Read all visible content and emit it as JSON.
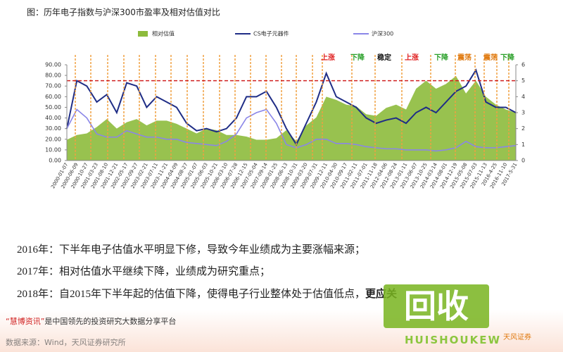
{
  "chart_data": {
    "type": "combo",
    "title": "图：历年电子指数与沪深300市盈率及相对估值对比",
    "categories": [
      "2000-01-07",
      "2000-06-09",
      "2000-10-27",
      "2001-03-23",
      "2001-08-10",
      "2001-12-21",
      "2002-05-17",
      "2002-09-27",
      "2003-02-21",
      "2003-07-11",
      "2003-11-21",
      "2004-04-09",
      "2004-08-27",
      "2005-01-07",
      "2005-06-03",
      "2005-10-21",
      "2006-03-10",
      "2006-07-28",
      "2006-12-15",
      "2007-05-04",
      "2007-09-14",
      "2008-01-25",
      "2008-06-13",
      "2008-10-31",
      "2009-03-20",
      "2009-07-31",
      "2009-12-11",
      "2010-04-30",
      "2010-09-17",
      "2011-02-11",
      "2011-07-01",
      "2011-11-18",
      "2012-04-06",
      "2012-08-24",
      "2013-01-11",
      "2013-06-07",
      "2013-10-25",
      "2014-03-14",
      "2014-08-01",
      "2014-12-19",
      "2015-05-08",
      "2015-07-03",
      "2015-11-13",
      "2016-4-25",
      "2016-11-10",
      "2017-5-31"
    ],
    "series": [
      {
        "name": "相对估值",
        "kind": "area",
        "axis": "y2",
        "color": "#8dbb3c",
        "values": [
          1.3,
          1.6,
          1.7,
          2.1,
          2.6,
          2.0,
          2.4,
          2.6,
          2.2,
          2.5,
          2.5,
          2.3,
          2.0,
          1.7,
          2.0,
          1.9,
          1.6,
          1.6,
          1.5,
          1.3,
          1.3,
          1.4,
          1.9,
          1.2,
          2.2,
          2.7,
          4.0,
          3.8,
          3.5,
          3.4,
          2.9,
          2.8,
          3.3,
          3.5,
          3.2,
          4.5,
          5.0,
          4.5,
          4.8,
          5.3,
          4.2,
          5.0,
          4.0,
          3.5,
          3.2,
          3.0
        ]
      },
      {
        "name": "CS电子元器件",
        "kind": "line",
        "color": "#1f2d86",
        "values": [
          30,
          75,
          70,
          55,
          62,
          45,
          73,
          70,
          50,
          60,
          55,
          50,
          35,
          28,
          30,
          27,
          30,
          40,
          60,
          60,
          65,
          50,
          30,
          15,
          35,
          55,
          82,
          60,
          55,
          50,
          40,
          35,
          38,
          40,
          35,
          45,
          50,
          45,
          55,
          65,
          70,
          85,
          55,
          50,
          50,
          45
        ]
      },
      {
        "name": "沪深300",
        "kind": "line",
        "color": "#8a86e8",
        "values": [
          30,
          48,
          40,
          25,
          22,
          22,
          28,
          25,
          22,
          22,
          20,
          20,
          17,
          16,
          15,
          14,
          18,
          25,
          40,
          45,
          48,
          35,
          15,
          12,
          15,
          20,
          20,
          16,
          16,
          15,
          13,
          12,
          11,
          11,
          10,
          10,
          10,
          9,
          10,
          12,
          18,
          13,
          12,
          12,
          13,
          14
        ]
      }
    ],
    "ylim": [
      0,
      90
    ],
    "yticks": [
      {
        "value": 0,
        "label": "0.00"
      },
      {
        "value": 10,
        "label": "10.00"
      },
      {
        "value": 20,
        "label": "20.00"
      },
      {
        "value": 30,
        "label": "30.00"
      },
      {
        "value": 40,
        "label": "40.00"
      },
      {
        "value": 50,
        "label": "50.00"
      },
      {
        "value": 60,
        "label": "60.00"
      },
      {
        "value": 70,
        "label": "70.00"
      },
      {
        "value": 80,
        "label": "80.00"
      },
      {
        "value": 90,
        "label": "90.00"
      }
    ],
    "y2lim": [
      0,
      6
    ],
    "y2ticks": [
      0,
      1,
      2,
      3,
      4,
      5,
      6
    ],
    "reference_line": 75,
    "annotations": [
      {
        "text": "上涨",
        "color": "#e02020"
      },
      {
        "text": "下降",
        "color": "#2aa02a"
      },
      {
        "text": "稳定",
        "color": "#111111"
      },
      {
        "text": "上涨",
        "color": "#e02020"
      },
      {
        "text": "下降",
        "color": "#2aa02a"
      },
      {
        "text": "震荡",
        "color": "#e07a10"
      },
      {
        "text": "震荡",
        "color": "#e07a10"
      },
      {
        "text": "下降",
        "color": "#2aa02a"
      }
    ]
  },
  "body": {
    "paragraphs": [
      [
        "2016年：下半年电子估值水平明显下修，导致今年业绩成为主要涨幅来源；"
      ],
      [
        "2017年：相对估值水平继续下降，业绩成为研究重点；"
      ],
      [
        "2018年：自2015年下半年起的估值下降，使得电子行业整体处于估值低点，",
        "更应关"
      ]
    ]
  },
  "footer": {
    "brand": "“慧博资讯”",
    "line": "是中国领先的投资研究大数据分享平台",
    "source": "数据来源：Wind，天风证券研究所"
  },
  "watermark": {
    "logo": "回收",
    "sub": "HUISHOUKEW",
    "company": "天风证券"
  }
}
